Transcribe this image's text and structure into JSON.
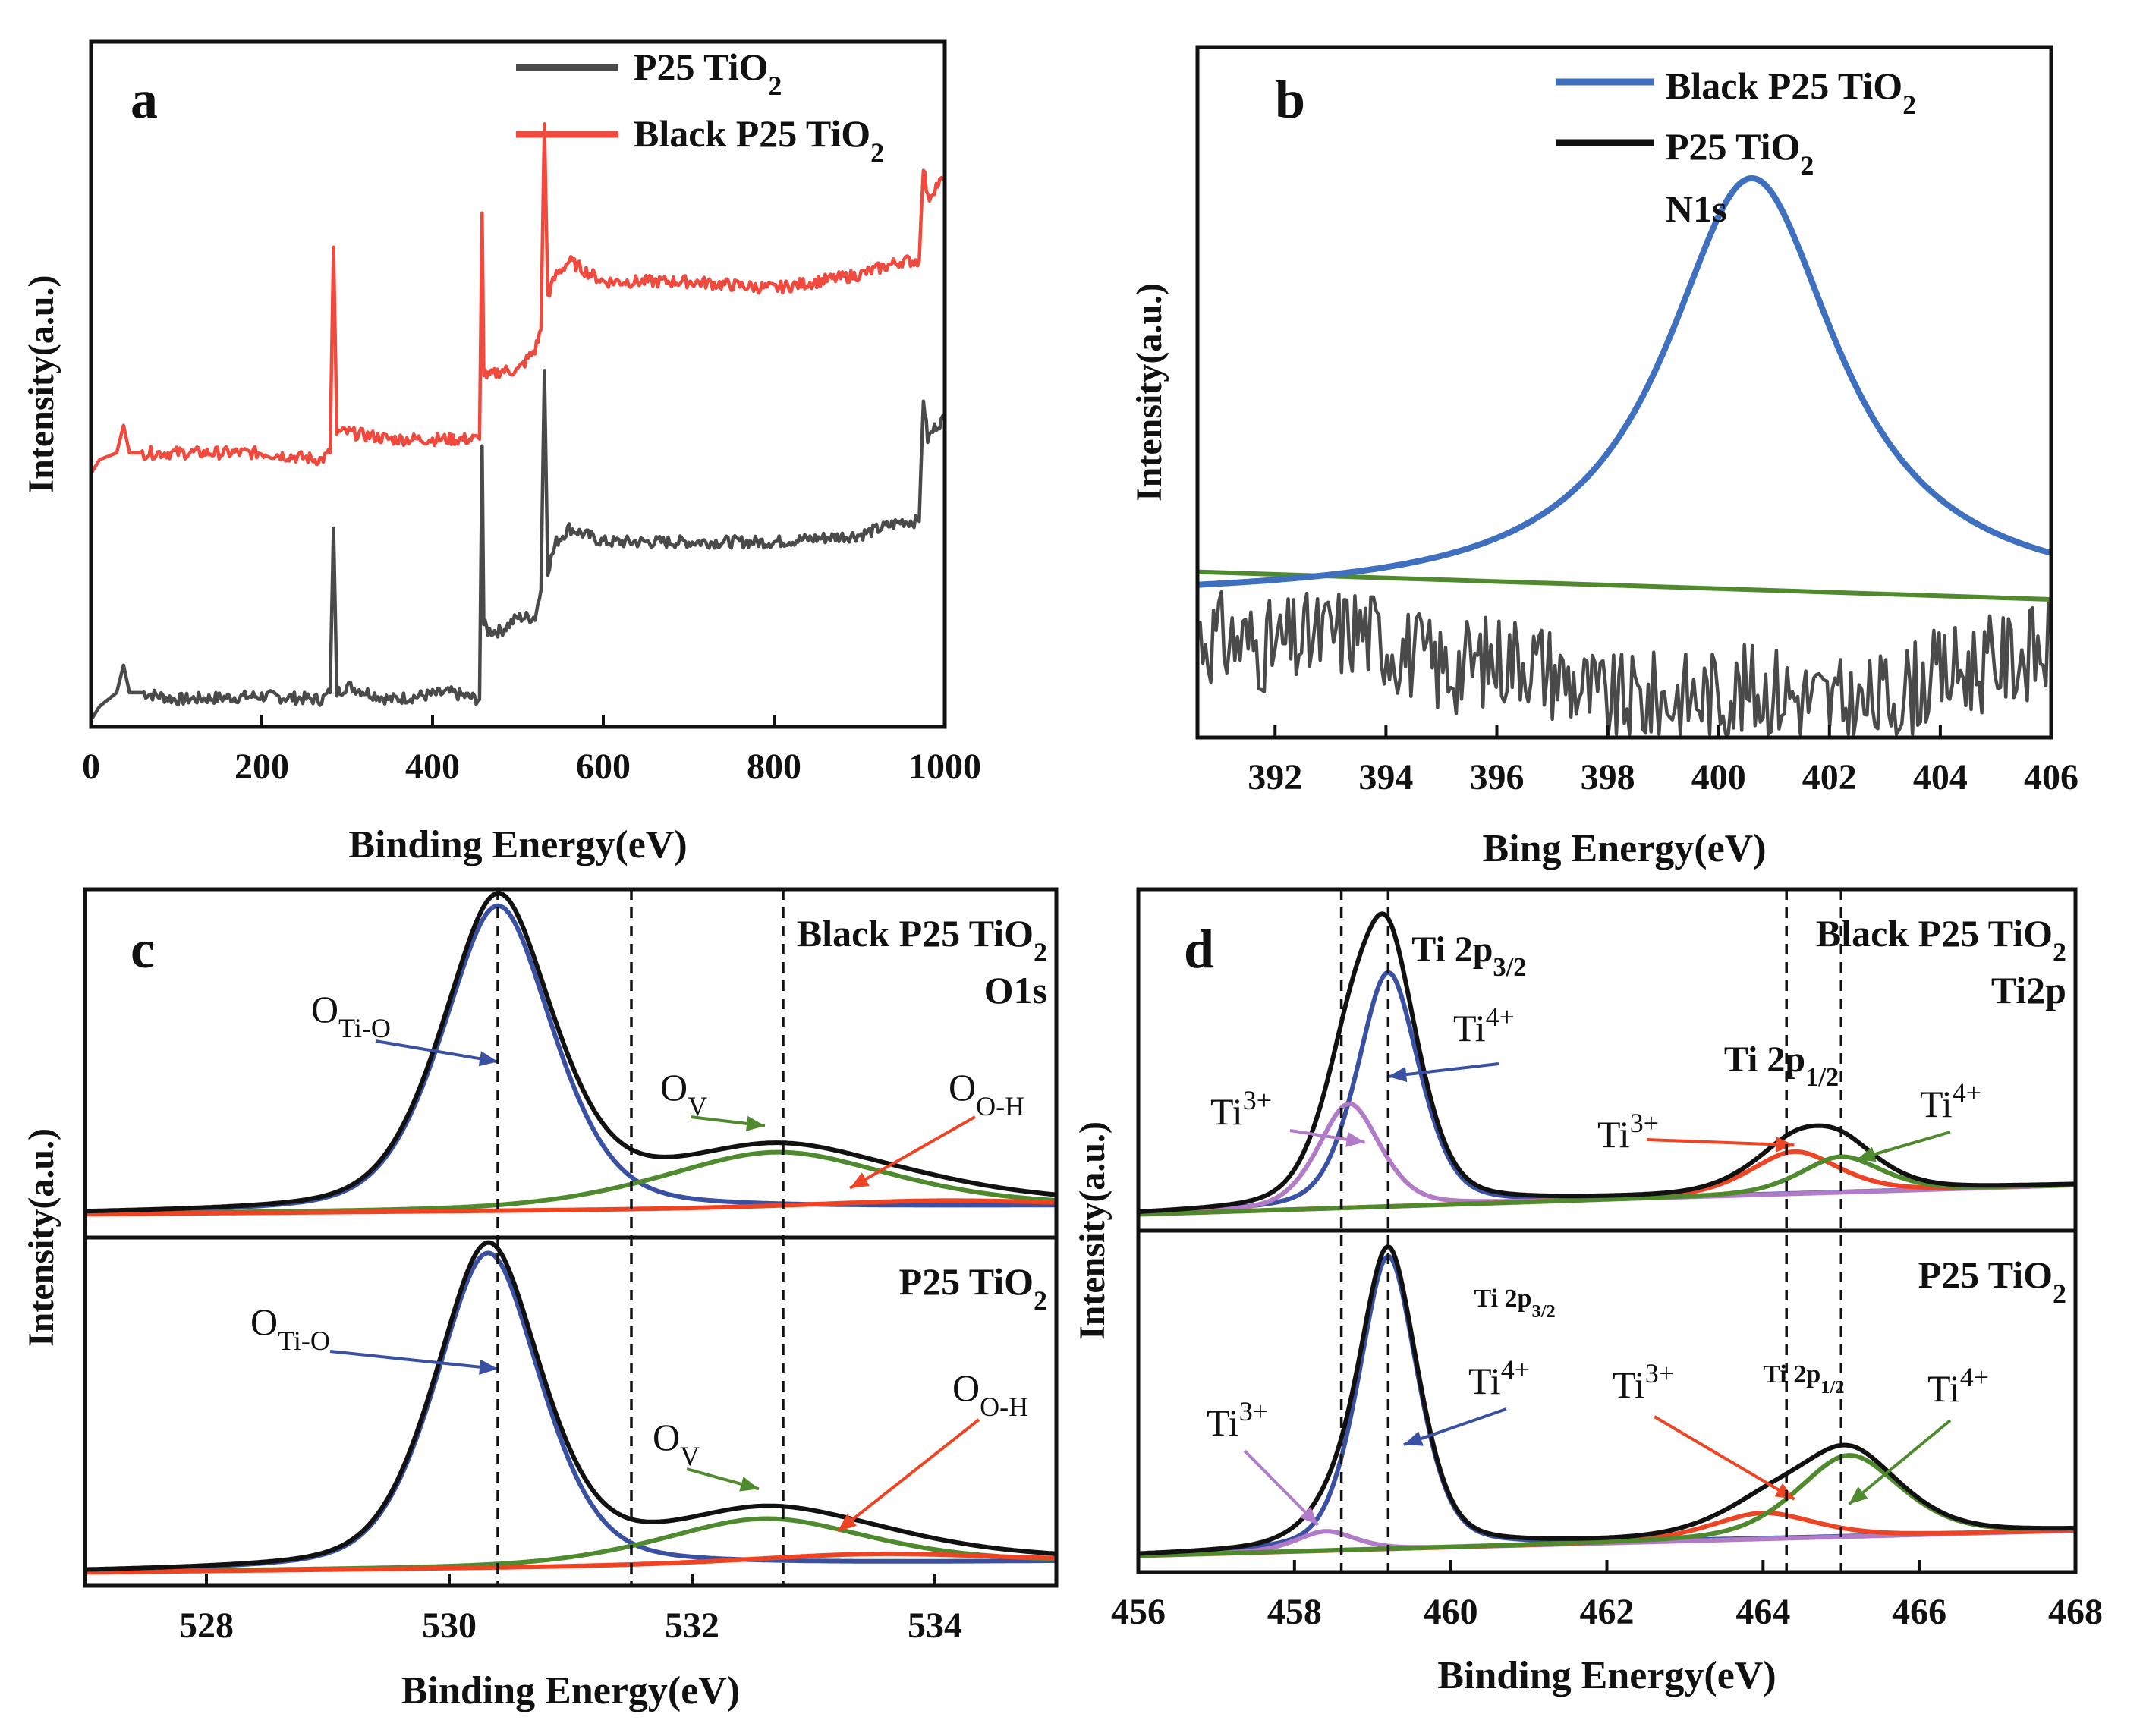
{
  "figure": {
    "panels": [
      "a",
      "b",
      "c",
      "d"
    ]
  },
  "colors": {
    "p25": "#4a4a4a",
    "black_p25": "#f04a3e",
    "blue": "#3a51a3",
    "green": "#4f8a2e",
    "red": "#ef4423",
    "purple": "#b27bc8",
    "black": "#111111",
    "nitrogen_fit": "#3f6fbf",
    "baseline": "#4f8a2e"
  },
  "chart_data": [
    {
      "id": "a",
      "type": "line",
      "panel_label": "a",
      "xlabel": "Binding Energy(eV)",
      "ylabel": "Intensity(a.u.)",
      "xlim": [
        0,
        1000
      ],
      "ylim": [
        0,
        1
      ],
      "xticks": [
        "0",
        "200",
        "400",
        "600",
        "800",
        "1000"
      ],
      "legend": [
        {
          "label": "P25 TiO",
          "sub": "2",
          "color_key": "p25"
        },
        {
          "label": "Black P25 TiO",
          "sub": "2",
          "color_key": "black_p25"
        }
      ],
      "series": [
        {
          "name": "P25 TiO2",
          "color_key": "p25",
          "x": [
            0,
            10,
            30,
            38,
            45,
            60,
            100,
            200,
            270,
            280,
            284,
            288,
            300,
            350,
            420,
            455,
            458,
            460,
            465,
            480,
            500,
            520,
            527,
            531,
            535,
            545,
            560,
            600,
            700,
            800,
            900,
            950,
            970,
            975,
            980,
            990,
            1000
          ],
          "y": [
            0.01,
            0.03,
            0.05,
            0.09,
            0.05,
            0.05,
            0.04,
            0.045,
            0.04,
            0.05,
            0.29,
            0.05,
            0.06,
            0.04,
            0.05,
            0.04,
            0.41,
            0.15,
            0.14,
            0.14,
            0.16,
            0.16,
            0.2,
            0.52,
            0.23,
            0.27,
            0.29,
            0.27,
            0.27,
            0.27,
            0.28,
            0.3,
            0.3,
            0.48,
            0.42,
            0.44,
            0.45
          ]
        },
        {
          "name": "Black P25 TiO2",
          "color_key": "black_p25",
          "x": [
            0,
            10,
            30,
            38,
            45,
            60,
            100,
            200,
            270,
            280,
            284,
            288,
            300,
            350,
            420,
            455,
            458,
            460,
            465,
            480,
            500,
            520,
            527,
            531,
            535,
            545,
            560,
            600,
            700,
            800,
            900,
            950,
            970,
            975,
            980,
            990,
            1000
          ],
          "y": [
            0.37,
            0.39,
            0.4,
            0.44,
            0.4,
            0.4,
            0.4,
            0.4,
            0.39,
            0.4,
            0.7,
            0.43,
            0.43,
            0.42,
            0.42,
            0.42,
            0.75,
            0.52,
            0.51,
            0.52,
            0.52,
            0.55,
            0.58,
            0.88,
            0.63,
            0.66,
            0.68,
            0.65,
            0.65,
            0.64,
            0.66,
            0.68,
            0.68,
            0.82,
            0.77,
            0.79,
            0.8
          ]
        }
      ]
    },
    {
      "id": "b",
      "type": "line",
      "panel_label": "b",
      "xlabel": "Bing Energy(eV)",
      "ylabel": "Intensity(a.u.)",
      "xlim": [
        390.6,
        406
      ],
      "ylim": [
        0,
        1
      ],
      "xticks": [
        "392",
        "394",
        "396",
        "398",
        "400",
        "402",
        "404",
        "406"
      ],
      "annotation": "N1s",
      "legend": [
        {
          "label": "Black P25 TiO",
          "sub": "2",
          "color_key": "nitrogen_fit"
        },
        {
          "label": "P25 TiO",
          "sub": "2",
          "color_key": "black"
        }
      ],
      "series": [
        {
          "name": "Black P25 TiO2",
          "color_key": "nitrogen_fit",
          "shape": "lorentzian",
          "center": 400.6,
          "amplitude": 0.61,
          "width": 1.9,
          "offset": 0.2
        },
        {
          "name": "Baseline",
          "color_key": "baseline",
          "shape": "linear",
          "x": [
            390.6,
            406
          ],
          "y": [
            0.24,
            0.2
          ]
        },
        {
          "name": "P25 TiO2",
          "color_key": "p25",
          "shape": "noise",
          "x": [
            390.6,
            392,
            393.5,
            395,
            396.5,
            398,
            399.5,
            401,
            402.5,
            404,
            405.5,
            406
          ],
          "y": [
            0.15,
            0.13,
            0.16,
            0.1,
            0.12,
            0.05,
            0.06,
            0.07,
            0.04,
            0.09,
            0.12,
            0.13
          ]
        }
      ]
    },
    {
      "id": "c",
      "type": "line",
      "panel_label": "c",
      "xlabel": "Binding Energy(eV)",
      "ylabel": "Intensity(a.u.)",
      "xlim": [
        527,
        535
      ],
      "ylim": [
        0,
        1
      ],
      "xticks": [
        "528",
        "530",
        "532",
        "534"
      ],
      "vlines": [
        530.4,
        531.5,
        532.75
      ],
      "subplots": [
        {
          "title": "Black P25 TiO",
          "title_sub": "2",
          "annotation": "O1s",
          "labels": [
            {
              "text": "O",
              "sub": "Ti-O",
              "tip": 530.4,
              "tip_y": 0.45,
              "color_key": "blue"
            },
            {
              "text": "O",
              "sub": "V",
              "tip": 532.6,
              "tip_y": 0.25,
              "color_key": "green"
            },
            {
              "text": "O",
              "sub": "O-H",
              "tip": 533.3,
              "tip_y": 0.06,
              "color_key": "red"
            }
          ],
          "peaks": [
            {
              "name": "O Ti-O",
              "color_key": "blue",
              "center": 530.4,
              "amplitude": 0.92,
              "width": 0.48
            },
            {
              "name": "O V",
              "color_key": "green",
              "center": 532.7,
              "amplitude": 0.17,
              "width": 1.0
            },
            {
              "name": "O O-H",
              "color_key": "red",
              "center": 534.0,
              "amplitude": 0.02,
              "width": 1.1
            }
          ]
        },
        {
          "title": "P25 TiO",
          "title_sub": "2",
          "annotation": "",
          "labels": [
            {
              "text": "O",
              "sub": "Ti-O",
              "tip": 530.4,
              "tip_y": 0.6,
              "color_key": "blue"
            },
            {
              "text": "O",
              "sub": "V",
              "tip": 532.55,
              "tip_y": 0.23,
              "color_key": "green"
            },
            {
              "text": "O",
              "sub": "O-H",
              "tip": 533.2,
              "tip_y": 0.1,
              "color_key": "red"
            }
          ],
          "peaks": [
            {
              "name": "O Ti-O",
              "color_key": "blue",
              "center": 530.32,
              "amplitude": 0.95,
              "width": 0.46
            },
            {
              "name": "O V",
              "color_key": "green",
              "center": 532.6,
              "amplitude": 0.14,
              "width": 0.9
            },
            {
              "name": "O O-H",
              "color_key": "red",
              "center": 533.5,
              "amplitude": 0.03,
              "width": 1.1
            }
          ]
        }
      ]
    },
    {
      "id": "d",
      "type": "line",
      "panel_label": "d",
      "xlabel": "Binding Energy(eV)",
      "ylabel": "Intensity(a.u.)",
      "xlim": [
        456,
        468
      ],
      "ylim": [
        0,
        1
      ],
      "xticks": [
        "456",
        "458",
        "460",
        "462",
        "464",
        "466",
        "468"
      ],
      "vlines": [
        458.6,
        459.2,
        464.3,
        465.0
      ],
      "subplots": [
        {
          "title": "Black P25 TiO",
          "title_sub": "2",
          "annotation": "Ti2p",
          "peak_labels": [
            {
              "text": "Ti 2p",
              "sub": "3/2",
              "x": 459.5
            },
            {
              "text": "Ti 2p",
              "sub": "1/2",
              "x": 463.5
            }
          ],
          "labels": [
            {
              "text": "Ti",
              "sup": "3+",
              "tip": 458.9,
              "tip_y": 0.2,
              "color_key": "purple"
            },
            {
              "text": "Ti",
              "sup": "4+",
              "tip": 459.2,
              "tip_y": 0.4,
              "color_key": "blue"
            },
            {
              "text": "Ti",
              "sup": "3+",
              "tip": 464.4,
              "tip_y": 0.15,
              "color_key": "red"
            },
            {
              "text": "Ti",
              "sup": "4+",
              "tip": 465.2,
              "tip_y": 0.1,
              "color_key": "green"
            }
          ],
          "peaks": [
            {
              "name": "Ti4+ 2p3/2",
              "color_key": "blue",
              "center": 459.2,
              "amplitude": 0.72,
              "width": 0.42
            },
            {
              "name": "Ti3+ 2p3/2",
              "color_key": "purple",
              "center": 458.7,
              "amplitude": 0.32,
              "width": 0.42
            },
            {
              "name": "Ti3+ 2p1/2",
              "color_key": "red",
              "center": 464.4,
              "amplitude": 0.13,
              "width": 0.6
            },
            {
              "name": "Ti4+ 2p1/2",
              "color_key": "green",
              "center": 465.0,
              "amplitude": 0.11,
              "width": 0.55
            }
          ]
        },
        {
          "title": "P25 TiO",
          "title_sub": "2",
          "annotation": "",
          "peak_labels": [
            {
              "text": "Ti 2p",
              "sub": "3/2",
              "x": 460.3
            },
            {
              "text": "Ti 2p",
              "sub": "1/2",
              "x": 464.0
            }
          ],
          "labels": [
            {
              "text": "Ti",
              "sup": "3+",
              "tip": 458.3,
              "tip_y": 0.08,
              "color_key": "purple"
            },
            {
              "text": "Ti",
              "sup": "4+",
              "tip": 459.4,
              "tip_y": 0.32,
              "color_key": "blue"
            },
            {
              "text": "Ti",
              "sup": "3+",
              "tip": 464.4,
              "tip_y": 0.12,
              "color_key": "red"
            },
            {
              "text": "Ti",
              "sup": "4+",
              "tip": 465.1,
              "tip_y": 0.1,
              "color_key": "green"
            }
          ],
          "peaks": [
            {
              "name": "Ti4+ 2p3/2",
              "color_key": "blue",
              "center": 459.2,
              "amplitude": 0.9,
              "width": 0.4
            },
            {
              "name": "Ti3+ 2p3/2",
              "color_key": "purple",
              "center": 458.4,
              "amplitude": 0.06,
              "width": 0.4
            },
            {
              "name": "Ti3+ 2p1/2",
              "color_key": "red",
              "center": 464.0,
              "amplitude": 0.08,
              "width": 0.7
            },
            {
              "name": "Ti4+ 2p1/2",
              "color_key": "green",
              "center": 465.1,
              "amplitude": 0.25,
              "width": 0.7
            }
          ]
        }
      ]
    }
  ]
}
